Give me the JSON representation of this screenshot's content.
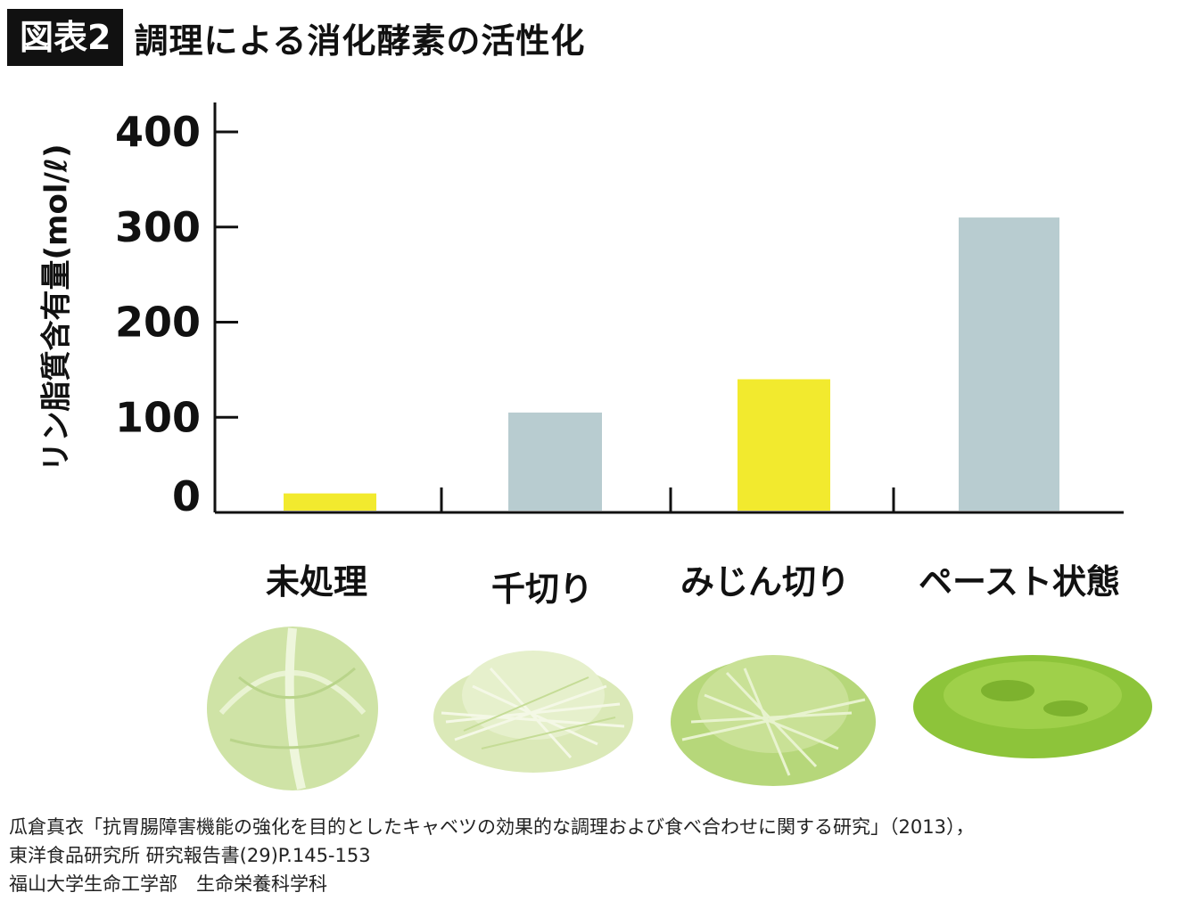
{
  "figure": {
    "badge": "図表2",
    "title": "調理による消化酵素の活性化"
  },
  "chart_data": {
    "type": "bar",
    "title": "調理による消化酵素の活性化",
    "ylabel": "リン脂質含有量(mol/ℓ)",
    "xlabel": "",
    "categories": [
      "未処理",
      "千切り",
      "みじん切り",
      "ペースト状態"
    ],
    "values": [
      20,
      105,
      140,
      310
    ],
    "bar_colors": [
      "#f2ea2e",
      "#b8ccd0",
      "#f2ea2e",
      "#b8ccd0"
    ],
    "ylim": [
      0,
      420
    ],
    "yticks": [
      0,
      100,
      200,
      300,
      400
    ],
    "ytick_labels": [
      "0",
      "100",
      "200",
      "300",
      "400"
    ],
    "grid": false,
    "legend": "none"
  },
  "illustrations": [
    {
      "name": "whole-cabbage",
      "color": "#cfe3a6"
    },
    {
      "name": "shredded-cabbage",
      "color": "#dbe9b8"
    },
    {
      "name": "minced-cabbage",
      "color": "#b6d77a"
    },
    {
      "name": "cabbage-paste",
      "color": "#8dc43a"
    }
  ],
  "source": {
    "line1": "瓜倉真衣「抗胃腸障害機能の強化を目的としたキャベツの効果的な調理および食べ合わせに関する研究」（2013），",
    "line2": "東洋食品研究所 研究報告書(29)P.145-153",
    "line3": "福山大学生命工学部　生命栄養科学科"
  }
}
